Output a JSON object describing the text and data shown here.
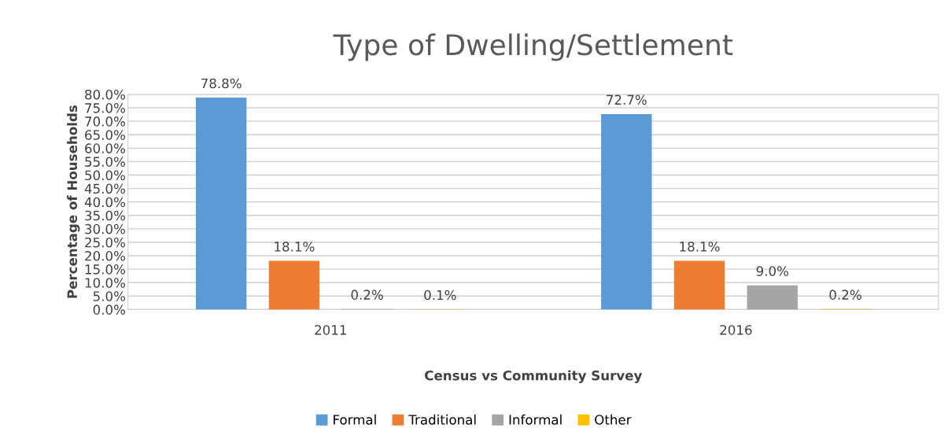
{
  "chart_data": {
    "type": "bar",
    "title": "Type of Dwelling/Settlement",
    "xlabel": "Census vs Community Survey",
    "ylabel": "Percentage of Households",
    "categories": [
      "2011",
      "2016"
    ],
    "series": [
      {
        "name": "Formal",
        "color": "#5b9bd5",
        "values": [
          78.8,
          72.7
        ],
        "value_labels": [
          "78.8%",
          "72.7%"
        ]
      },
      {
        "name": "Traditional",
        "color": "#ed7d31",
        "values": [
          18.1,
          18.1
        ],
        "value_labels": [
          "18.1%",
          "18.1%"
        ]
      },
      {
        "name": "Informal",
        "color": "#a5a5a5",
        "values": [
          0.2,
          9.0
        ],
        "value_labels": [
          "0.2%",
          "9.0%"
        ]
      },
      {
        "name": "Other",
        "color": "#ffc000",
        "values": [
          0.1,
          0.2
        ],
        "value_labels": [
          "0.1%",
          "0.2%"
        ]
      }
    ],
    "ylim": [
      0,
      80
    ],
    "yticks": [
      {
        "value": 0,
        "label": "0.0%"
      },
      {
        "value": 5,
        "label": "5.0%"
      },
      {
        "value": 10,
        "label": "10.0%"
      },
      {
        "value": 15,
        "label": "15.0%"
      },
      {
        "value": 20,
        "label": "20.0%"
      },
      {
        "value": 25,
        "label": "25.0%"
      },
      {
        "value": 30,
        "label": "30.0%"
      },
      {
        "value": 35,
        "label": "35.0%"
      },
      {
        "value": 40,
        "label": "40.0%"
      },
      {
        "value": 45,
        "label": "45.0%"
      },
      {
        "value": 50,
        "label": "50.0%"
      },
      {
        "value": 55,
        "label": "55.0%"
      },
      {
        "value": 60,
        "label": "60.0%"
      },
      {
        "value": 65,
        "label": "65.0%"
      },
      {
        "value": 70,
        "label": "70.0%"
      },
      {
        "value": 75,
        "label": "75.0%"
      },
      {
        "value": 80,
        "label": "80.0%"
      }
    ],
    "grid": "y",
    "legend": "bottom"
  }
}
